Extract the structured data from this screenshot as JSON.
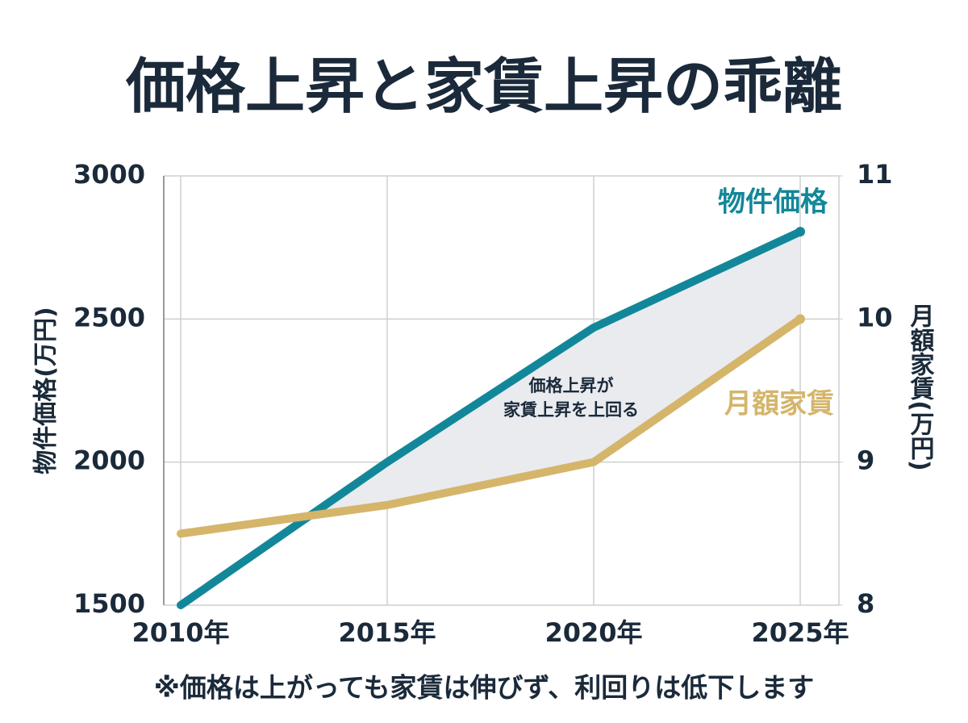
{
  "chart_data": {
    "type": "line",
    "title": "価格上昇と家賃上昇の乖離",
    "categories": [
      "2010年",
      "2015年",
      "2020年",
      "2025年"
    ],
    "series": [
      {
        "name": "物件価格",
        "color": "#13879a",
        "values": [
          1500,
          2000,
          2470,
          2805
        ]
      },
      {
        "name": "月額家賃",
        "color": "#d4b56a",
        "values": [
          8.5,
          8.7,
          9.0,
          10.0
        ],
        "axis": "y2"
      }
    ],
    "ylabel": "物件価格(万円)",
    "y2label": "月額家賃(万円)",
    "ylim": [
      1500,
      3000
    ],
    "yticks": [
      1500,
      2000,
      2500,
      3000
    ],
    "y2lim": [
      8,
      11
    ],
    "y2ticks": [
      8,
      9,
      10,
      11
    ],
    "grid": true,
    "fill_between": true,
    "fill_color": "#e9ebef",
    "annotation": [
      "価格上昇が",
      "家賃上昇を上回る"
    ],
    "footnote": "※価格は上がっても家賃は伸びず、利回りは低下します"
  }
}
